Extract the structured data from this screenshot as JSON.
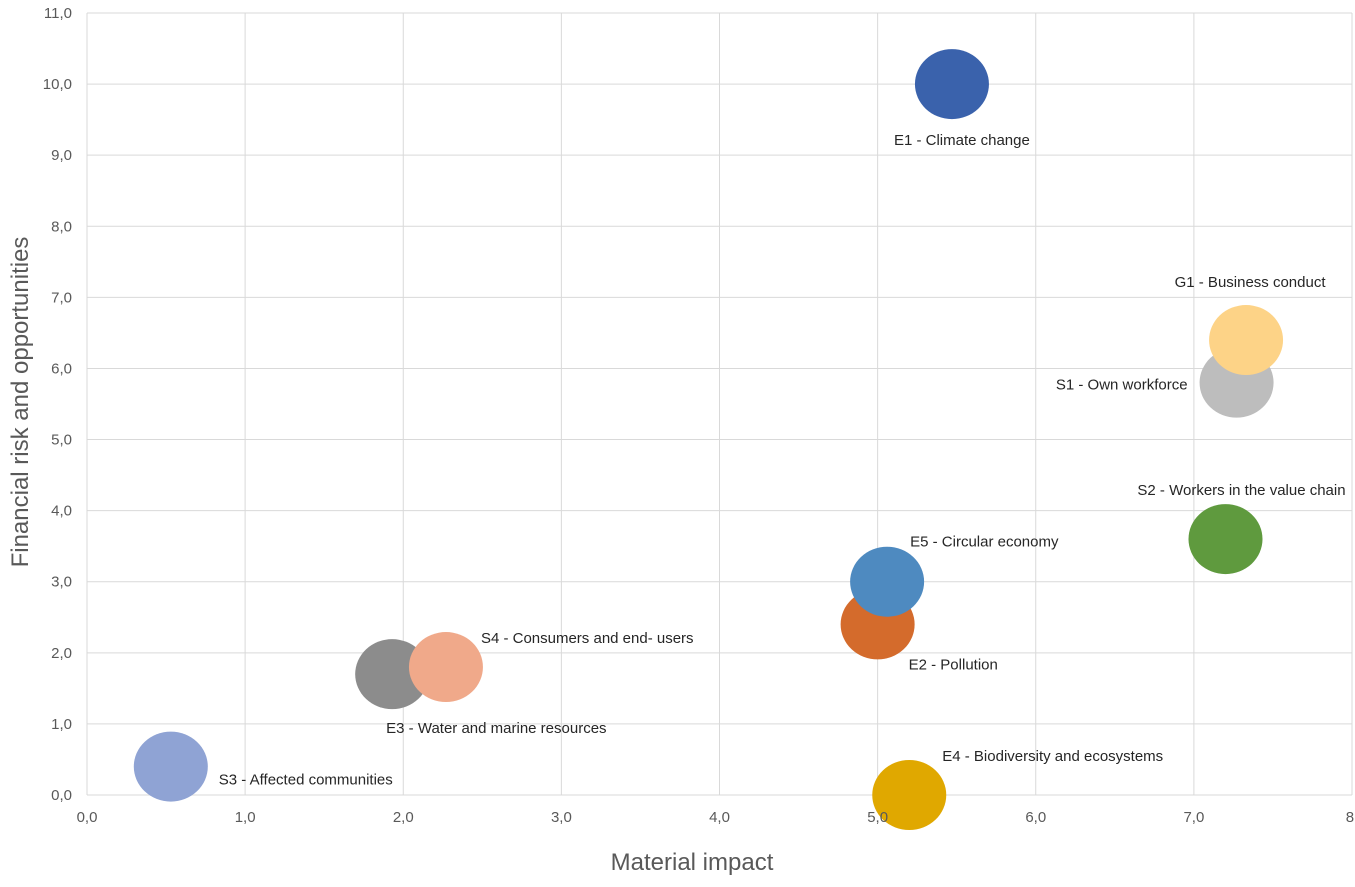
{
  "chart_data": {
    "type": "scatter",
    "title": "",
    "xlabel": "Material impact",
    "ylabel": "Financial risk and opportunities",
    "xlim": [
      0,
      8
    ],
    "ylim": [
      0,
      11
    ],
    "x_ticks": [
      "0,0",
      "1,0",
      "2,0",
      "3,0",
      "4,0",
      "5,0",
      "6,0",
      "7,0",
      "8,"
    ],
    "y_ticks": [
      "0,0",
      "1,0",
      "2,0",
      "3,0",
      "4,0",
      "5,0",
      "6,0",
      "7,0",
      "8,0",
      "9,0",
      "10,0",
      "11,0"
    ],
    "grid": true,
    "legend": "none",
    "points": [
      {
        "label": "S3 - Affected communities",
        "x": 0.53,
        "y": 0.4,
        "color": "#8FA3D4"
      },
      {
        "label": "E3 - Water and marine resources",
        "x": 1.93,
        "y": 1.7,
        "color": "#8C8C8C"
      },
      {
        "label": "S4 - Consumers and end- users",
        "x": 2.27,
        "y": 1.8,
        "color": "#F0A98A"
      },
      {
        "label": "E2 - Pollution",
        "x": 5.0,
        "y": 2.4,
        "color": "#D46B2C"
      },
      {
        "label": "E5 - Circular economy",
        "x": 5.06,
        "y": 3.0,
        "color": "#4E8AC0"
      },
      {
        "label": "E4 - Biodiversity and ecosystems",
        "x": 5.2,
        "y": 0.0,
        "color": "#E0A800"
      },
      {
        "label": "E1 - Climate change",
        "x": 5.47,
        "y": 10.0,
        "color": "#3A62AC"
      },
      {
        "label": "S2 - Workers in the value chain",
        "x": 7.2,
        "y": 3.6,
        "color": "#5F9A3E"
      },
      {
        "label": "S1 - Own workforce",
        "x": 7.27,
        "y": 5.8,
        "color": "#BDBDBD"
      },
      {
        "label": "G1 - Business conduct",
        "x": 7.33,
        "y": 6.4,
        "color": "#FDD387"
      }
    ]
  }
}
